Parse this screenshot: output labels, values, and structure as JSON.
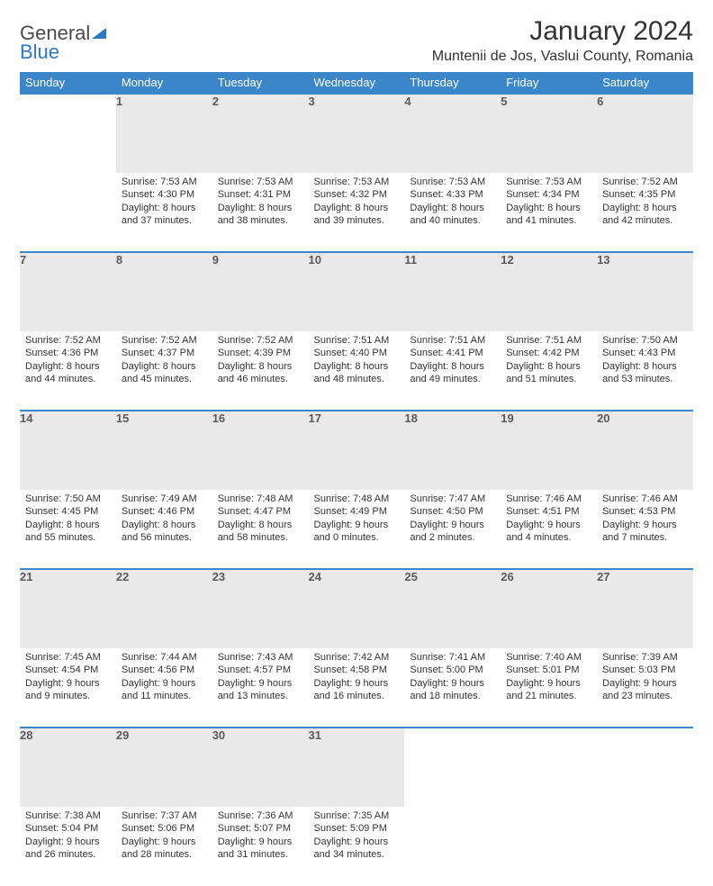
{
  "brand": {
    "part1": "General",
    "part2": "Blue"
  },
  "title": "January 2024",
  "location": "Muntenii de Jos, Vaslui County, Romania",
  "colors": {
    "header_bg": "#3a86c8",
    "header_text": "#ffffff",
    "daynum_bg": "#e9e9e9",
    "daynum_text": "#5a5a5a",
    "rule": "#3a86c8",
    "body_text": "#333333",
    "brand_gray": "#4a4a4a",
    "brand_blue": "#2a79c4",
    "page_bg": "#ffffff"
  },
  "layout": {
    "columns": 7,
    "rows": 5,
    "fontsize_header": 13,
    "fontsize_daynum": 13,
    "fontsize_body": 11,
    "fontsize_title": 30,
    "fontsize_location": 16
  },
  "weekdays": [
    "Sunday",
    "Monday",
    "Tuesday",
    "Wednesday",
    "Thursday",
    "Friday",
    "Saturday"
  ],
  "weeks": [
    [
      {
        "n": "",
        "lines": [
          "",
          "",
          "",
          ""
        ]
      },
      {
        "n": "1",
        "lines": [
          "Sunrise: 7:53 AM",
          "Sunset: 4:30 PM",
          "Daylight: 8 hours",
          "and 37 minutes."
        ]
      },
      {
        "n": "2",
        "lines": [
          "Sunrise: 7:53 AM",
          "Sunset: 4:31 PM",
          "Daylight: 8 hours",
          "and 38 minutes."
        ]
      },
      {
        "n": "3",
        "lines": [
          "Sunrise: 7:53 AM",
          "Sunset: 4:32 PM",
          "Daylight: 8 hours",
          "and 39 minutes."
        ]
      },
      {
        "n": "4",
        "lines": [
          "Sunrise: 7:53 AM",
          "Sunset: 4:33 PM",
          "Daylight: 8 hours",
          "and 40 minutes."
        ]
      },
      {
        "n": "5",
        "lines": [
          "Sunrise: 7:53 AM",
          "Sunset: 4:34 PM",
          "Daylight: 8 hours",
          "and 41 minutes."
        ]
      },
      {
        "n": "6",
        "lines": [
          "Sunrise: 7:52 AM",
          "Sunset: 4:35 PM",
          "Daylight: 8 hours",
          "and 42 minutes."
        ]
      }
    ],
    [
      {
        "n": "7",
        "lines": [
          "Sunrise: 7:52 AM",
          "Sunset: 4:36 PM",
          "Daylight: 8 hours",
          "and 44 minutes."
        ]
      },
      {
        "n": "8",
        "lines": [
          "Sunrise: 7:52 AM",
          "Sunset: 4:37 PM",
          "Daylight: 8 hours",
          "and 45 minutes."
        ]
      },
      {
        "n": "9",
        "lines": [
          "Sunrise: 7:52 AM",
          "Sunset: 4:39 PM",
          "Daylight: 8 hours",
          "and 46 minutes."
        ]
      },
      {
        "n": "10",
        "lines": [
          "Sunrise: 7:51 AM",
          "Sunset: 4:40 PM",
          "Daylight: 8 hours",
          "and 48 minutes."
        ]
      },
      {
        "n": "11",
        "lines": [
          "Sunrise: 7:51 AM",
          "Sunset: 4:41 PM",
          "Daylight: 8 hours",
          "and 49 minutes."
        ]
      },
      {
        "n": "12",
        "lines": [
          "Sunrise: 7:51 AM",
          "Sunset: 4:42 PM",
          "Daylight: 8 hours",
          "and 51 minutes."
        ]
      },
      {
        "n": "13",
        "lines": [
          "Sunrise: 7:50 AM",
          "Sunset: 4:43 PM",
          "Daylight: 8 hours",
          "and 53 minutes."
        ]
      }
    ],
    [
      {
        "n": "14",
        "lines": [
          "Sunrise: 7:50 AM",
          "Sunset: 4:45 PM",
          "Daylight: 8 hours",
          "and 55 minutes."
        ]
      },
      {
        "n": "15",
        "lines": [
          "Sunrise: 7:49 AM",
          "Sunset: 4:46 PM",
          "Daylight: 8 hours",
          "and 56 minutes."
        ]
      },
      {
        "n": "16",
        "lines": [
          "Sunrise: 7:48 AM",
          "Sunset: 4:47 PM",
          "Daylight: 8 hours",
          "and 58 minutes."
        ]
      },
      {
        "n": "17",
        "lines": [
          "Sunrise: 7:48 AM",
          "Sunset: 4:49 PM",
          "Daylight: 9 hours",
          "and 0 minutes."
        ]
      },
      {
        "n": "18",
        "lines": [
          "Sunrise: 7:47 AM",
          "Sunset: 4:50 PM",
          "Daylight: 9 hours",
          "and 2 minutes."
        ]
      },
      {
        "n": "19",
        "lines": [
          "Sunrise: 7:46 AM",
          "Sunset: 4:51 PM",
          "Daylight: 9 hours",
          "and 4 minutes."
        ]
      },
      {
        "n": "20",
        "lines": [
          "Sunrise: 7:46 AM",
          "Sunset: 4:53 PM",
          "Daylight: 9 hours",
          "and 7 minutes."
        ]
      }
    ],
    [
      {
        "n": "21",
        "lines": [
          "Sunrise: 7:45 AM",
          "Sunset: 4:54 PM",
          "Daylight: 9 hours",
          "and 9 minutes."
        ]
      },
      {
        "n": "22",
        "lines": [
          "Sunrise: 7:44 AM",
          "Sunset: 4:56 PM",
          "Daylight: 9 hours",
          "and 11 minutes."
        ]
      },
      {
        "n": "23",
        "lines": [
          "Sunrise: 7:43 AM",
          "Sunset: 4:57 PM",
          "Daylight: 9 hours",
          "and 13 minutes."
        ]
      },
      {
        "n": "24",
        "lines": [
          "Sunrise: 7:42 AM",
          "Sunset: 4:58 PM",
          "Daylight: 9 hours",
          "and 16 minutes."
        ]
      },
      {
        "n": "25",
        "lines": [
          "Sunrise: 7:41 AM",
          "Sunset: 5:00 PM",
          "Daylight: 9 hours",
          "and 18 minutes."
        ]
      },
      {
        "n": "26",
        "lines": [
          "Sunrise: 7:40 AM",
          "Sunset: 5:01 PM",
          "Daylight: 9 hours",
          "and 21 minutes."
        ]
      },
      {
        "n": "27",
        "lines": [
          "Sunrise: 7:39 AM",
          "Sunset: 5:03 PM",
          "Daylight: 9 hours",
          "and 23 minutes."
        ]
      }
    ],
    [
      {
        "n": "28",
        "lines": [
          "Sunrise: 7:38 AM",
          "Sunset: 5:04 PM",
          "Daylight: 9 hours",
          "and 26 minutes."
        ]
      },
      {
        "n": "29",
        "lines": [
          "Sunrise: 7:37 AM",
          "Sunset: 5:06 PM",
          "Daylight: 9 hours",
          "and 28 minutes."
        ]
      },
      {
        "n": "30",
        "lines": [
          "Sunrise: 7:36 AM",
          "Sunset: 5:07 PM",
          "Daylight: 9 hours",
          "and 31 minutes."
        ]
      },
      {
        "n": "31",
        "lines": [
          "Sunrise: 7:35 AM",
          "Sunset: 5:09 PM",
          "Daylight: 9 hours",
          "and 34 minutes."
        ]
      },
      {
        "n": "",
        "lines": [
          "",
          "",
          "",
          ""
        ]
      },
      {
        "n": "",
        "lines": [
          "",
          "",
          "",
          ""
        ]
      },
      {
        "n": "",
        "lines": [
          "",
          "",
          "",
          ""
        ]
      }
    ]
  ]
}
